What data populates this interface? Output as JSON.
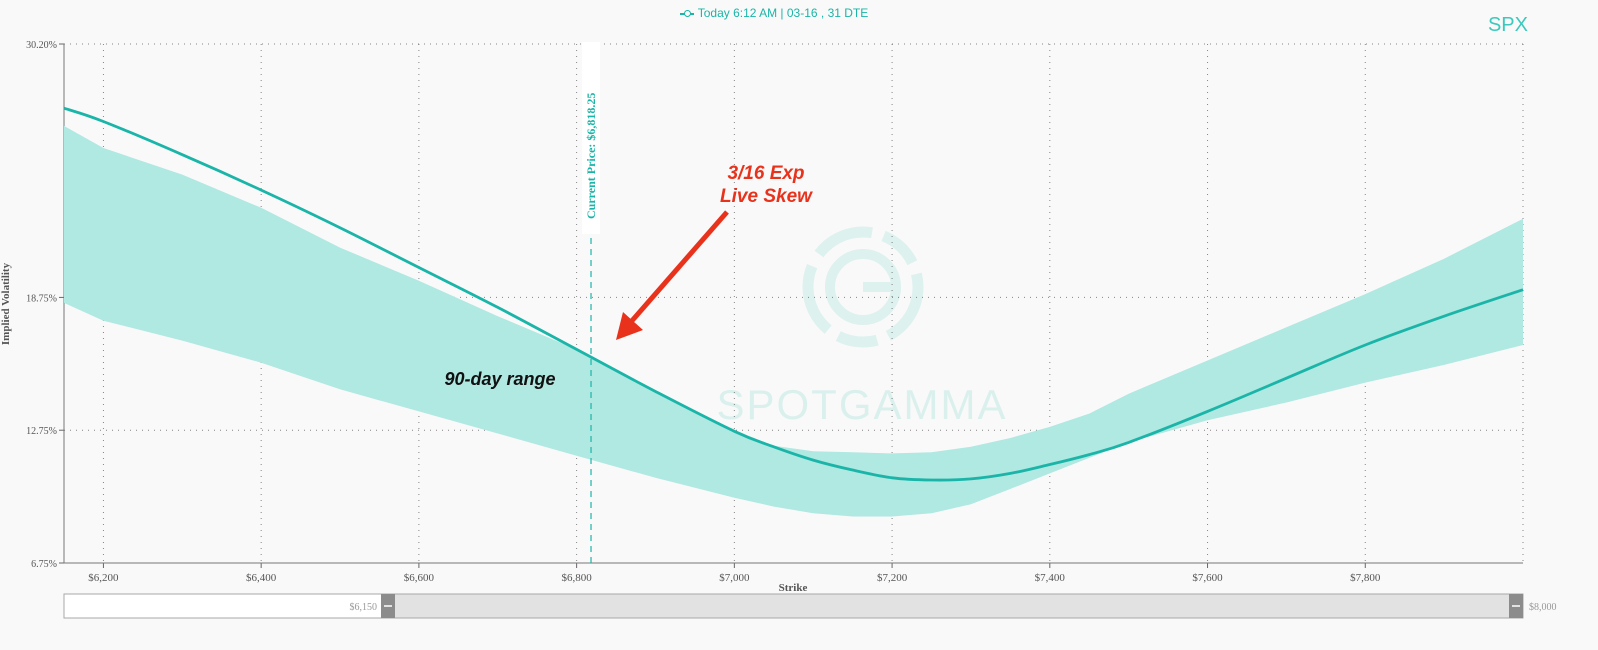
{
  "header": {
    "legend_label": "Today 6:12 AM | 03-16 , 31 DTE",
    "ticker": "SPX"
  },
  "watermark": {
    "text": "SPOTGAMMA"
  },
  "colors": {
    "accent": "#1ab5a8",
    "band": "#b0e8e2",
    "annotation": "#e8321c",
    "background": "#f9f9f9"
  },
  "chart_data": {
    "type": "line",
    "xlabel": "Strike",
    "ylabel": "Implied Volatility",
    "xlim": [
      6150,
      8000
    ],
    "ylim": [
      6.75,
      30.2
    ],
    "x_ticks": [
      {
        "value": 6200,
        "label": "$6,200"
      },
      {
        "value": 6400,
        "label": "$6,400"
      },
      {
        "value": 6600,
        "label": "$6,600"
      },
      {
        "value": 6800,
        "label": "$6,800"
      },
      {
        "value": 7000,
        "label": "$7,000"
      },
      {
        "value": 7200,
        "label": "$7,200"
      },
      {
        "value": 7400,
        "label": "$7,400"
      },
      {
        "value": 7600,
        "label": "$7,600"
      },
      {
        "value": 7800,
        "label": "$7,800"
      }
    ],
    "y_ticks": [
      {
        "value": 30.2,
        "label": "30.20%"
      },
      {
        "value": 18.75,
        "label": "18.75%"
      },
      {
        "value": 12.75,
        "label": "12.75%"
      },
      {
        "value": 6.75,
        "label": "6.75%"
      }
    ],
    "grid": true,
    "series": [
      {
        "name": "Today 6:12 AM | 03-16 , 31 DTE",
        "x": [
          6150,
          6200,
          6300,
          6400,
          6500,
          6600,
          6700,
          6800,
          6900,
          7000,
          7050,
          7100,
          7150,
          7200,
          7250,
          7300,
          7350,
          7400,
          7450,
          7500,
          7600,
          7700,
          7800,
          7900,
          8000
        ],
        "y": [
          27.3,
          26.7,
          25.2,
          23.6,
          21.9,
          20.1,
          18.3,
          16.4,
          14.5,
          12.7,
          12.0,
          11.4,
          10.95,
          10.6,
          10.5,
          10.55,
          10.8,
          11.2,
          11.65,
          12.2,
          13.6,
          15.1,
          16.6,
          17.9,
          19.1
        ]
      }
    ],
    "band": {
      "name": "90-day range",
      "x": [
        6150,
        6200,
        6300,
        6400,
        6500,
        6600,
        6700,
        6800,
        6900,
        7000,
        7050,
        7100,
        7150,
        7200,
        7250,
        7300,
        7350,
        7400,
        7450,
        7500,
        7600,
        7700,
        7800,
        7900,
        8000
      ],
      "upper": [
        26.5,
        25.5,
        24.3,
        22.8,
        21.0,
        19.5,
        17.9,
        16.4,
        14.5,
        12.7,
        12.05,
        11.8,
        11.75,
        11.7,
        11.75,
        12.0,
        12.4,
        12.9,
        13.5,
        14.4,
        15.9,
        17.4,
        18.9,
        20.5,
        22.3
      ],
      "lower": [
        18.5,
        17.7,
        16.8,
        15.8,
        14.6,
        13.6,
        12.6,
        11.6,
        10.6,
        9.7,
        9.3,
        9.0,
        8.85,
        8.85,
        9.0,
        9.4,
        10.1,
        10.8,
        11.5,
        12.2,
        13.2,
        14.0,
        14.9,
        15.7,
        16.6
      ]
    },
    "current_price": {
      "value": 6818.25,
      "label": "Current Price: $6,818.25"
    },
    "annotations": [
      {
        "text_line1": "3/16 Exp",
        "text_line2": "Live Skew"
      },
      {
        "text": "90-day range"
      }
    ],
    "navigator": {
      "min_label": "$6,150",
      "max_label": "$8,000"
    }
  }
}
